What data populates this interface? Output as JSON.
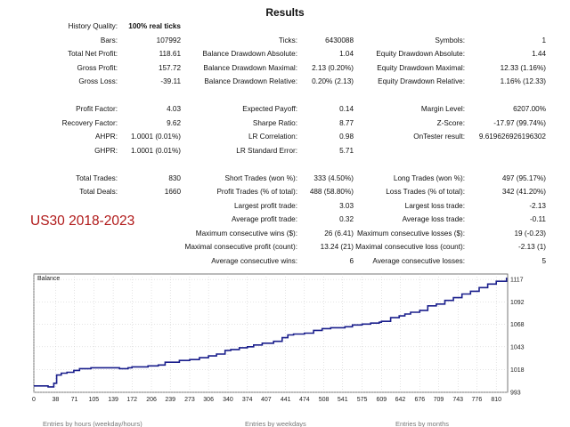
{
  "title": "Results",
  "tag_label": "US30 2018-2023",
  "rows": [
    {
      "name": "history-quality",
      "label": "History Quality:",
      "value": "100% real ticks",
      "col": 0,
      "row": 0,
      "bold": true
    },
    {
      "name": "bars",
      "label": "Bars:",
      "value": "107992",
      "col": 0,
      "row": 1
    },
    {
      "name": "total-net-profit",
      "label": "Total Net Profit:",
      "value": "118.61",
      "col": 0,
      "row": 2
    },
    {
      "name": "gross-profit",
      "label": "Gross Profit:",
      "value": "157.72",
      "col": 0,
      "row": 3
    },
    {
      "name": "gross-loss",
      "label": "Gross Loss:",
      "value": "-39.11",
      "col": 0,
      "row": 4
    },
    {
      "name": "ticks",
      "label": "Ticks:",
      "value": "6430088",
      "col": 1,
      "row": 1
    },
    {
      "name": "balance-drawdown-absolute",
      "label": "Balance Drawdown Absolute:",
      "value": "1.04",
      "col": 1,
      "row": 2
    },
    {
      "name": "balance-drawdown-maximal",
      "label": "Balance Drawdown Maximal:",
      "value": "2.13 (0.20%)",
      "col": 1,
      "row": 3
    },
    {
      "name": "balance-drawdown-relative",
      "label": "Balance Drawdown Relative:",
      "value": "0.20% (2.13)",
      "col": 1,
      "row": 4
    },
    {
      "name": "symbols",
      "label": "Symbols:",
      "value": "1",
      "col": 2,
      "row": 1
    },
    {
      "name": "equity-drawdown-absolute",
      "label": "Equity Drawdown Absolute:",
      "value": "1.44",
      "col": 2,
      "row": 2
    },
    {
      "name": "equity-drawdown-maximal",
      "label": "Equity Drawdown Maximal:",
      "value": "12.33 (1.16%)",
      "col": 2,
      "row": 3
    },
    {
      "name": "equity-drawdown-relative",
      "label": "Equity Drawdown Relative:",
      "value": "1.16% (12.33)",
      "col": 2,
      "row": 4
    },
    {
      "name": "profit-factor",
      "label": "Profit Factor:",
      "value": "4.03",
      "col": 0,
      "row": 6
    },
    {
      "name": "recovery-factor",
      "label": "Recovery Factor:",
      "value": "9.62",
      "col": 0,
      "row": 7
    },
    {
      "name": "ahpr",
      "label": "AHPR:",
      "value": "1.0001 (0.01%)",
      "col": 0,
      "row": 8
    },
    {
      "name": "ghpr",
      "label": "GHPR:",
      "value": "1.0001 (0.01%)",
      "col": 0,
      "row": 9
    },
    {
      "name": "expected-payoff",
      "label": "Expected Payoff:",
      "value": "0.14",
      "col": 1,
      "row": 6
    },
    {
      "name": "sharpe-ratio",
      "label": "Sharpe Ratio:",
      "value": "8.77",
      "col": 1,
      "row": 7
    },
    {
      "name": "lr-correlation",
      "label": "LR Correlation:",
      "value": "0.98",
      "col": 1,
      "row": 8
    },
    {
      "name": "lr-standard-error",
      "label": "LR Standard Error:",
      "value": "5.71",
      "col": 1,
      "row": 9
    },
    {
      "name": "margin-level",
      "label": "Margin Level:",
      "value": "6207.00%",
      "col": 2,
      "row": 6
    },
    {
      "name": "z-score",
      "label": "Z-Score:",
      "value": "-17.97 (99.74%)",
      "col": 2,
      "row": 7
    },
    {
      "name": "ontester-result",
      "label": "OnTester result:",
      "value": "9.619626926196302",
      "col": 2,
      "row": 8
    },
    {
      "name": "total-trades",
      "label": "Total Trades:",
      "value": "830",
      "col": 0,
      "row": 11
    },
    {
      "name": "total-deals",
      "label": "Total Deals:",
      "value": "1660",
      "col": 0,
      "row": 12
    },
    {
      "name": "short-trades",
      "label": "Short Trades (won %):",
      "value": "333 (4.50%)",
      "col": 1,
      "row": 11
    },
    {
      "name": "profit-trades",
      "label": "Profit Trades (% of total):",
      "value": "488 (58.80%)",
      "col": 1,
      "row": 12
    },
    {
      "name": "largest-profit-trade",
      "label": "Largest profit trade:",
      "value": "3.03",
      "col": 1,
      "row": 13
    },
    {
      "name": "average-profit-trade",
      "label": "Average profit trade:",
      "value": "0.32",
      "col": 1,
      "row": 14
    },
    {
      "name": "max-consecutive-wins",
      "label": "Maximum consecutive wins ($):",
      "value": "26 (6.41)",
      "col": 1,
      "row": 15
    },
    {
      "name": "maximal-consecutive-profit",
      "label": "Maximal consecutive profit (count):",
      "value": "13.24 (21)",
      "col": 1,
      "row": 16
    },
    {
      "name": "average-consecutive-wins",
      "label": "Average consecutive wins:",
      "value": "6",
      "col": 1,
      "row": 17
    },
    {
      "name": "long-trades",
      "label": "Long Trades (won %):",
      "value": "497 (95.17%)",
      "col": 2,
      "row": 11
    },
    {
      "name": "loss-trades",
      "label": "Loss Trades (% of total):",
      "value": "342 (41.20%)",
      "col": 2,
      "row": 12
    },
    {
      "name": "largest-loss-trade",
      "label": "Largest loss trade:",
      "value": "-2.13",
      "col": 2,
      "row": 13
    },
    {
      "name": "average-loss-trade",
      "label": "Average loss trade:",
      "value": "-0.11",
      "col": 2,
      "row": 14
    },
    {
      "name": "max-consecutive-losses",
      "label": "Maximum consecutive losses ($):",
      "value": "19 (-0.23)",
      "col": 2,
      "row": 15
    },
    {
      "name": "maximal-consecutive-loss",
      "label": "Maximal consecutive loss (count):",
      "value": "-2.13 (1)",
      "col": 2,
      "row": 16
    },
    {
      "name": "average-consecutive-losses",
      "label": "Average consecutive losses:",
      "value": "5",
      "col": 2,
      "row": 17
    }
  ],
  "chart_data": {
    "type": "line",
    "title": "Balance",
    "xlabel": "",
    "ylabel": "",
    "x_ticks": [
      0,
      38,
      71,
      105,
      139,
      172,
      206,
      239,
      273,
      306,
      340,
      374,
      407,
      441,
      474,
      508,
      541,
      575,
      609,
      642,
      676,
      709,
      743,
      776,
      810
    ],
    "y_ticks": [
      993,
      1018,
      1043,
      1068,
      1092,
      1117
    ],
    "xlim": [
      0,
      830
    ],
    "ylim": [
      993,
      1123
    ],
    "grid": true,
    "line_color": "#1a1f8c",
    "series": [
      {
        "x": [
          0,
          12,
          25,
          35,
          40,
          48,
          58,
          70,
          80,
          100,
          120,
          139,
          150,
          165,
          172,
          185,
          200,
          206,
          218,
          230,
          240,
          255,
          273,
          290,
          306,
          320,
          335,
          345,
          360,
          374,
          385,
          400,
          407,
          420,
          435,
          445,
          455,
          474,
          490,
          505,
          508,
          520,
          535,
          545,
          558,
          575,
          590,
          605,
          609,
          625,
          640,
          650,
          660,
          676,
          690,
          705,
          720,
          735,
          750,
          765,
          780,
          795,
          810,
          828
        ],
        "y": [
          1000,
          1000,
          999,
          1003,
          1012,
          1014,
          1015,
          1017,
          1019,
          1020,
          1020,
          1020,
          1019,
          1020,
          1021,
          1021,
          1022,
          1022,
          1023,
          1026,
          1026,
          1028,
          1029,
          1031,
          1033,
          1035,
          1039,
          1040,
          1042,
          1043,
          1045,
          1047,
          1047,
          1049,
          1053,
          1056,
          1057,
          1058,
          1061,
          1063,
          1063,
          1064,
          1064,
          1065,
          1067,
          1068,
          1069,
          1070,
          1071,
          1075,
          1077,
          1079,
          1081,
          1083,
          1088,
          1090,
          1094,
          1097,
          1101,
          1104,
          1108,
          1112,
          1115,
          1119
        ]
      }
    ]
  },
  "footer": [
    {
      "name": "footer-entries-label",
      "text": "Entries by hours (weekday/hours)"
    },
    {
      "name": "footer-entries-label-2",
      "text": "Entries by weekdays"
    },
    {
      "name": "footer-entries-label-3",
      "text": "Entries by months"
    }
  ]
}
